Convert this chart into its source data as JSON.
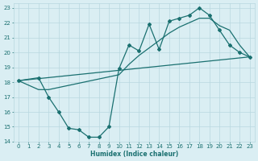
{
  "xlabel": "Humidex (Indice chaleur)",
  "bg_color": "#daeef3",
  "grid_color": "#b8d8e0",
  "line_color": "#1a7070",
  "xlim": [
    -0.5,
    23.5
  ],
  "ylim": [
    14,
    23.3
  ],
  "yticks": [
    14,
    15,
    16,
    17,
    18,
    19,
    20,
    21,
    22,
    23
  ],
  "xticks": [
    0,
    1,
    2,
    3,
    4,
    5,
    6,
    7,
    8,
    9,
    10,
    11,
    12,
    13,
    14,
    15,
    16,
    17,
    18,
    19,
    20,
    21,
    22,
    23
  ],
  "line1_x": [
    0,
    2,
    3,
    4,
    5,
    6,
    7,
    8,
    9,
    10,
    11,
    12,
    13,
    14,
    15,
    16,
    17,
    18,
    19,
    20,
    21,
    22,
    23
  ],
  "line1_y": [
    18.1,
    18.3,
    17.0,
    16.0,
    14.9,
    14.8,
    14.3,
    14.3,
    15.0,
    18.9,
    20.5,
    20.1,
    21.9,
    20.2,
    22.1,
    22.3,
    22.5,
    23.0,
    22.5,
    21.5,
    20.5,
    20.0,
    19.7
  ],
  "line2_x": [
    0,
    23
  ],
  "line2_y": [
    18.1,
    19.7
  ],
  "line3_x": [
    0,
    2,
    3,
    10,
    11,
    12,
    13,
    14,
    15,
    16,
    17,
    18,
    19,
    20,
    21,
    22,
    23
  ],
  "line3_y": [
    18.1,
    17.5,
    17.5,
    18.5,
    19.2,
    19.8,
    20.3,
    20.8,
    21.3,
    21.7,
    22.0,
    22.3,
    22.3,
    21.8,
    21.5,
    20.5,
    19.7
  ]
}
